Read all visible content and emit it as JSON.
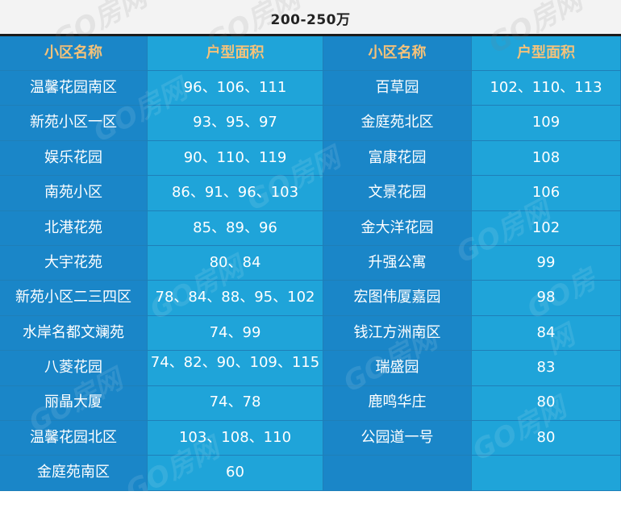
{
  "title": "200-250万",
  "headers": [
    "小区名称",
    "户型面积",
    "小区名称",
    "户型面积"
  ],
  "rows": [
    [
      "温馨花园南区",
      "96、106、111",
      "百草园",
      "102、110、113"
    ],
    [
      "新苑小区一区",
      "93、95、97",
      "金庭苑北区",
      "109"
    ],
    [
      "娱乐花园",
      "90、110、119",
      "富康花园",
      "108"
    ],
    [
      "南苑小区",
      "86、91、96、103",
      "文景花园",
      "106"
    ],
    [
      "北港花苑",
      "85、89、96",
      "金大洋花园",
      "102"
    ],
    [
      "大宇花苑",
      "80、84",
      "升强公寓",
      "99"
    ],
    [
      "新苑小区二三四区",
      "78、84、88、95、102",
      "宏图伟厦嘉园",
      "98"
    ],
    [
      "水岸名都文斓苑",
      "74、99",
      "钱江方洲南区",
      "84"
    ],
    [
      "八菱花园",
      "74、82、90、109、115",
      "瑞盛园",
      "83"
    ],
    [
      "丽晶大厦",
      "74、78",
      "鹿鸣华庄",
      "80"
    ],
    [
      "温馨花园北区",
      "103、108、110",
      "公园道一号",
      "80"
    ],
    [
      "金庭苑南区",
      "60",
      "",
      ""
    ]
  ],
  "watermark_text": "GO房网"
}
